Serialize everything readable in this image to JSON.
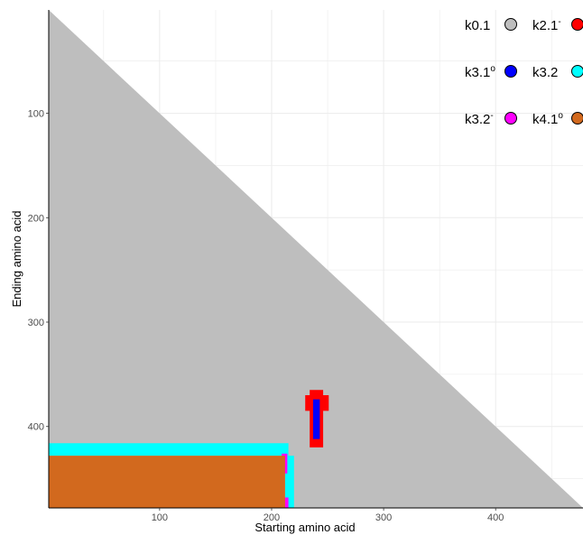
{
  "chart_data": {
    "type": "heatmap",
    "title": "",
    "xlabel": "Starting amino acid",
    "ylabel": "Ending amino acid",
    "xlim": [
      1,
      478
    ],
    "ylim": [
      1,
      478
    ],
    "y_reversed": true,
    "x_ticks": [
      100,
      200,
      300,
      400
    ],
    "y_ticks": [
      100,
      200,
      300,
      400
    ],
    "grid": true,
    "legend_position": "top-right",
    "legend": [
      {
        "key": "k0.1",
        "label": "k0.1",
        "sup": "",
        "color": "#bebebe"
      },
      {
        "key": "k2.1-",
        "label": "k2.1",
        "sup": "-",
        "color": "#ff0000"
      },
      {
        "key": "k3.1o",
        "label": "k3.1",
        "sup": "o",
        "color": "#0000ff"
      },
      {
        "key": "k3.2",
        "label": "k3.2",
        "sup": "",
        "color": "#00ffff"
      },
      {
        "key": "k3.2-",
        "label": "k3.2",
        "sup": "-",
        "color": "#ff00ff"
      },
      {
        "key": "k4.1o",
        "label": "k4.1",
        "sup": "o",
        "color": "#d2691e"
      }
    ],
    "background_class": "k0.1",
    "regions": [
      {
        "class": "k3.2",
        "x": [
          1,
          215
        ],
        "y": [
          416,
          428
        ]
      },
      {
        "class": "k3.2",
        "x": [
          212,
          220
        ],
        "y": [
          428,
          478
        ]
      },
      {
        "class": "k3.2-",
        "x": [
          209,
          214
        ],
        "y": [
          426,
          445
        ]
      },
      {
        "class": "k3.2-",
        "x": [
          210,
          215
        ],
        "y": [
          468,
          478
        ]
      },
      {
        "class": "k4.1o",
        "x": [
          1,
          212
        ],
        "y": [
          428,
          478
        ]
      },
      {
        "class": "k2.1-",
        "x": [
          230,
          251
        ],
        "y": [
          370,
          385
        ]
      },
      {
        "class": "k2.1-",
        "x": [
          234,
          246
        ],
        "y": [
          365,
          420
        ]
      },
      {
        "class": "k3.1o",
        "x": [
          237,
          243
        ],
        "y": [
          374,
          412
        ]
      }
    ]
  }
}
